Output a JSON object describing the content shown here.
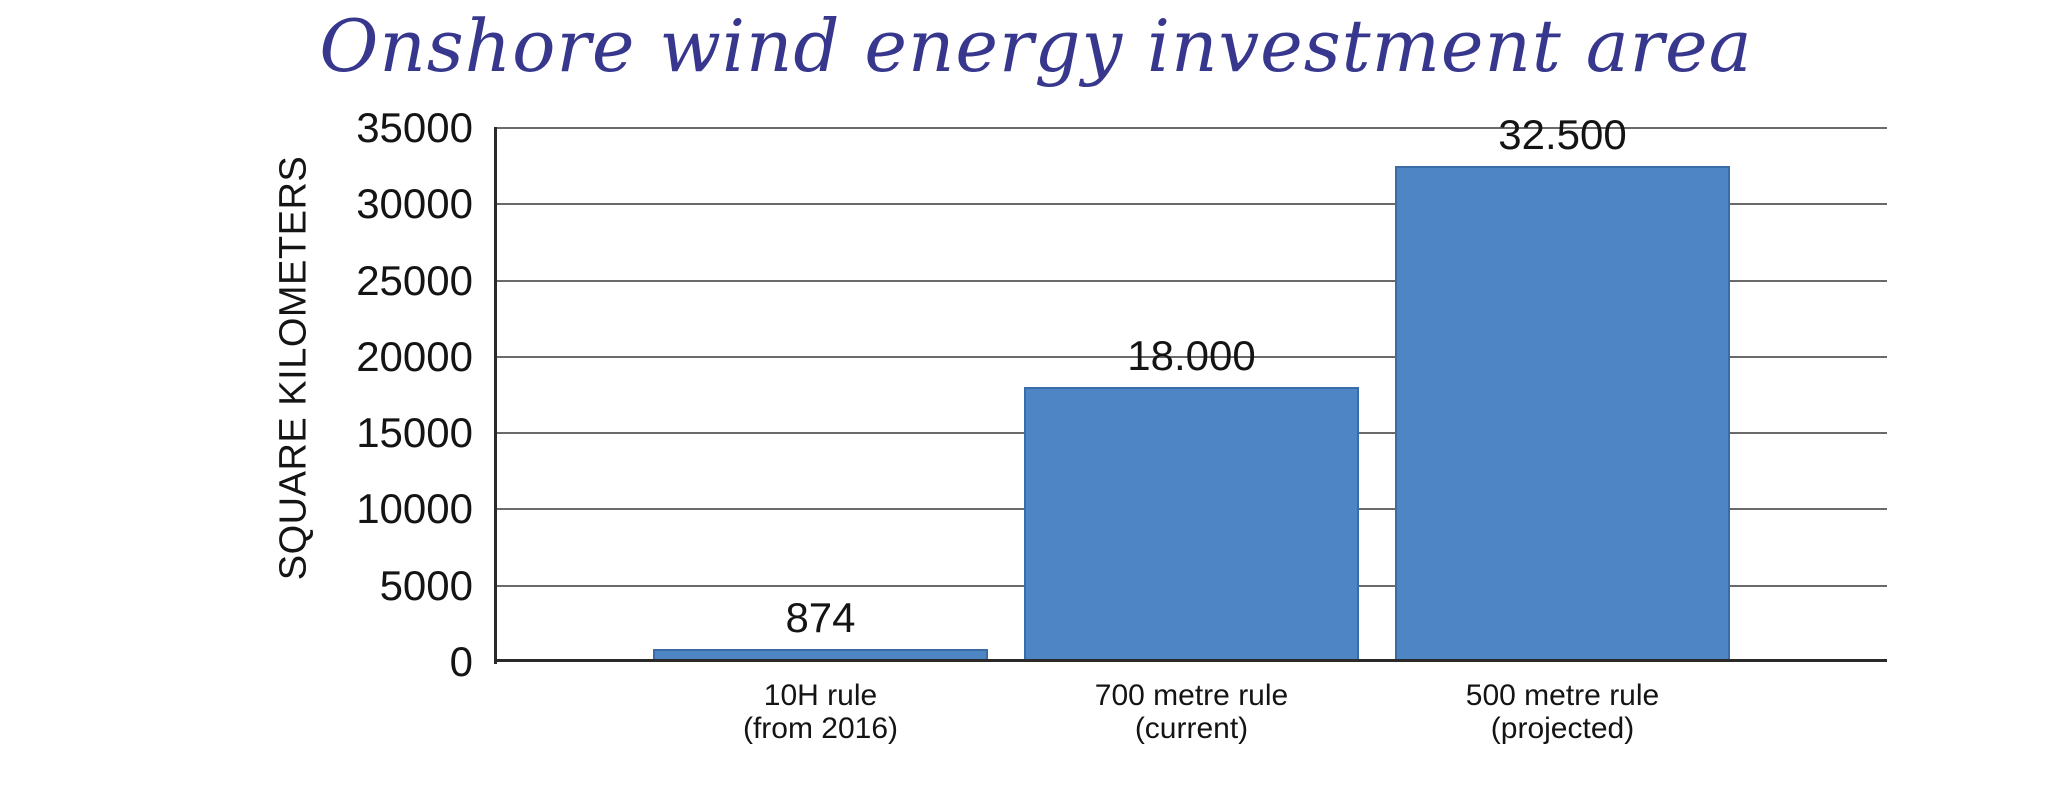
{
  "chart_data": {
    "type": "bar",
    "title": "Onshore wind energy investment area",
    "ylabel": "SQUARE KILOMETERS",
    "xlabel": "",
    "categories": [
      "10H rule (from 2016)",
      "700 metre rule (current)",
      "500 metre rule (projected)"
    ],
    "category_lines": [
      [
        "10H rule",
        "(from 2016)"
      ],
      [
        "700 metre rule",
        "(current)"
      ],
      [
        "500 metre rule",
        "(projected)"
      ]
    ],
    "values": [
      874,
      18000,
      32500
    ],
    "value_labels": [
      "874",
      "18.000",
      "32.500"
    ],
    "ylim": [
      0,
      35000
    ],
    "yticks": [
      0,
      5000,
      10000,
      15000,
      20000,
      25000,
      30000,
      35000
    ],
    "ytick_labels": [
      "0",
      "5000",
      "10000",
      "15000",
      "20000",
      "25000",
      "30000",
      "35000"
    ],
    "grid": true,
    "legend_position": "none",
    "colors": {
      "bar": "#4e85c5",
      "bar_border": "#3a6ca8",
      "title": "#37378d",
      "grid": "#6a6a6a",
      "axis": "#2a2a2a",
      "text": "#141414",
      "background": "#ffffff"
    }
  }
}
